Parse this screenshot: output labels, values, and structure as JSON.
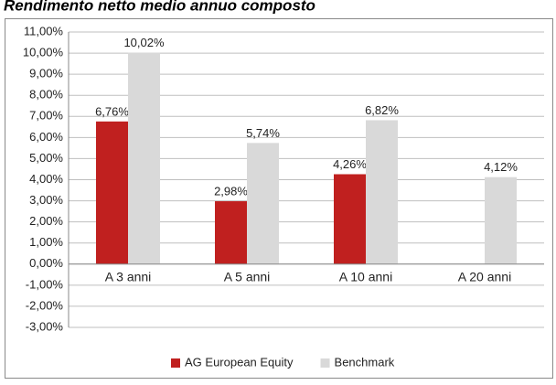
{
  "chart_data": {
    "type": "bar",
    "title": "Rendimento netto medio annuo composto",
    "categories": [
      "A 3 anni",
      "A 5 anni",
      "A 10 anni",
      "A 20 anni"
    ],
    "series": [
      {
        "name": "AG European Equity",
        "color": "#c0201f",
        "values": [
          6.76,
          2.98,
          4.26,
          null
        ],
        "value_labels": [
          "6,76%",
          "2,98%",
          "4,26%",
          null
        ]
      },
      {
        "name": "Benchmark",
        "color": "#d9d9d9",
        "values": [
          10.02,
          5.74,
          6.82,
          4.12
        ],
        "value_labels": [
          "10,02%",
          "5,74%",
          "6,82%",
          "4,12%"
        ]
      }
    ],
    "ylim": [
      -3,
      11
    ],
    "yticks": [
      {
        "value": -3,
        "label": "-3,00%"
      },
      {
        "value": -2,
        "label": "-2,00%"
      },
      {
        "value": -1,
        "label": "-1,00%"
      },
      {
        "value": 0,
        "label": "0,00%"
      },
      {
        "value": 1,
        "label": "1,00%"
      },
      {
        "value": 2,
        "label": "2,00%"
      },
      {
        "value": 3,
        "label": "3,00%"
      },
      {
        "value": 4,
        "label": "4,00%"
      },
      {
        "value": 5,
        "label": "5,00%"
      },
      {
        "value": 6,
        "label": "6,00%"
      },
      {
        "value": 7,
        "label": "7,00%"
      },
      {
        "value": 8,
        "label": "8,00%"
      },
      {
        "value": 9,
        "label": "9,00%"
      },
      {
        "value": 10,
        "label": "10,00%"
      },
      {
        "value": 11,
        "label": "11,00%"
      }
    ],
    "grid": true,
    "legend": "bottom"
  }
}
